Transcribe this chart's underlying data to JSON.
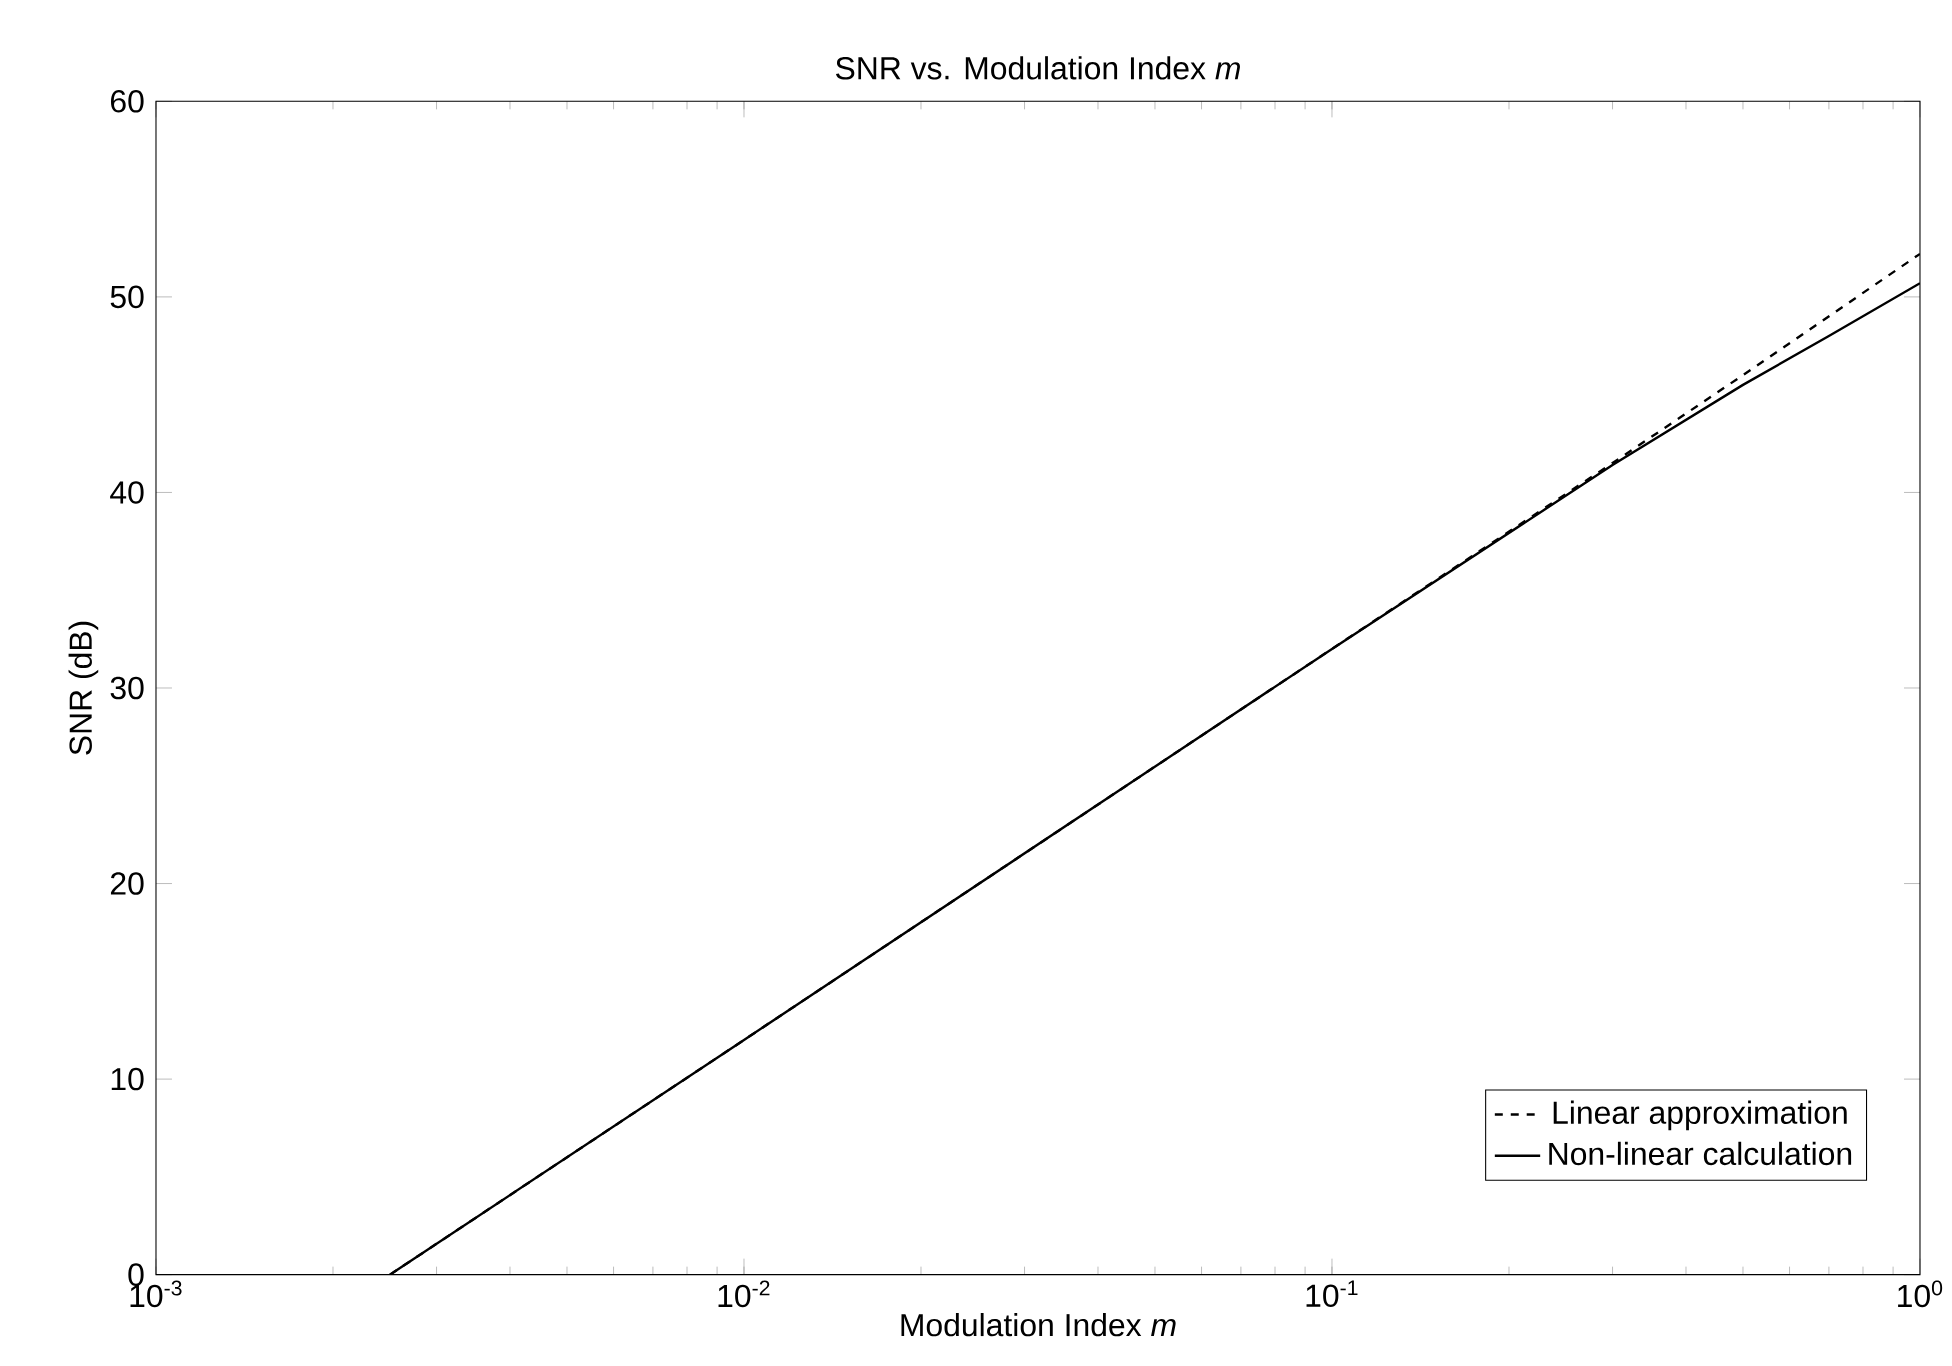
{
  "chart_data": {
    "type": "line",
    "title": "SNR vs. Modulation Index *m*",
    "xlabel": "Modulation Index *m*",
    "ylabel": "SNR (dB)",
    "log": "x",
    "xlim": [
      0.001,
      1
    ],
    "xticks": [
      {
        "value": 0.001,
        "label": "10$^{-3}$"
      },
      {
        "value": 0.01,
        "label": "10$^{-2}$"
      },
      {
        "value": 0.1,
        "label": "10$^{-1}$"
      },
      {
        "value": 1,
        "label": "10$^{0}$"
      }
    ],
    "ylim": [
      0,
      60
    ],
    "yticks": [
      0,
      10,
      20,
      30,
      40,
      50,
      60
    ],
    "grid": false,
    "legend": "bottom right",
    "series": [
      {
        "name": "Linear approximation",
        "color": "#000000",
        "line_style": "dashed",
        "x": [
          0.0025,
          0.01,
          0.1,
          0.3,
          0.5,
          1
        ],
        "values": [
          0,
          12,
          32,
          41.5,
          46,
          52.2
        ]
      },
      {
        "name": "Non-linear calculation",
        "color": "#000000",
        "line_style": "solid",
        "x": [
          0.0025,
          0.01,
          0.1,
          0.3,
          0.5,
          0.7,
          1
        ],
        "values": [
          0,
          12,
          32,
          41.4,
          45.5,
          48,
          50.7
        ]
      }
    ]
  }
}
